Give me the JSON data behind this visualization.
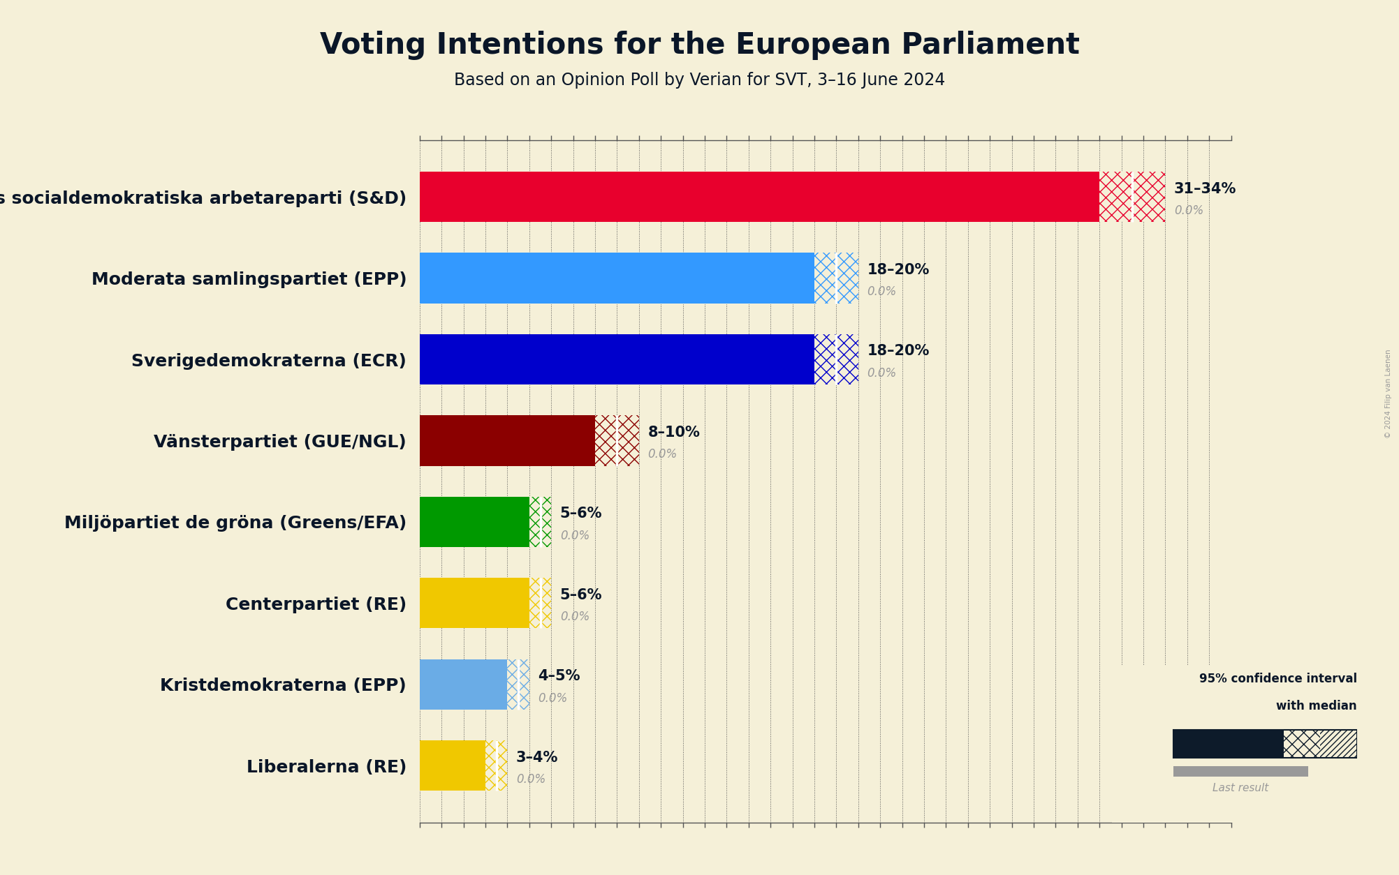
{
  "title": "Voting Intentions for the European Parliament",
  "subtitle": "Based on an Opinion Poll by Verian for SVT, 3–16 June 2024",
  "copyright": "© 2024 Filip van Laenen",
  "background_color": "#f5f0d8",
  "parties": [
    {
      "name": "Sveriges socialdemokratiska arbetareparti (S&D)",
      "low": 31,
      "high": 34,
      "median": 32.5,
      "last": 0.0,
      "color": "#e8002d",
      "label": "31–34%"
    },
    {
      "name": "Moderata samlingspartiet (EPP)",
      "low": 18,
      "high": 20,
      "median": 19,
      "last": 0.0,
      "color": "#3399ff",
      "label": "18–20%"
    },
    {
      "name": "Sverigedemokraterna (ECR)",
      "low": 18,
      "high": 20,
      "median": 19,
      "last": 0.0,
      "color": "#0000cc",
      "label": "18–20%"
    },
    {
      "name": "Vänsterpartiet (GUE/NGL)",
      "low": 8,
      "high": 10,
      "median": 9,
      "last": 0.0,
      "color": "#8b0000",
      "label": "8–10%"
    },
    {
      "name": "Miljöpartiet de gröna (Greens/EFA)",
      "low": 5,
      "high": 6,
      "median": 5.5,
      "last": 0.0,
      "color": "#009900",
      "label": "5–6%"
    },
    {
      "name": "Centerpartiet (RE)",
      "low": 5,
      "high": 6,
      "median": 5.5,
      "last": 0.0,
      "color": "#f0c800",
      "label": "5–6%"
    },
    {
      "name": "Kristdemokraterna (EPP)",
      "low": 4,
      "high": 5,
      "median": 4.5,
      "last": 0.0,
      "color": "#6aace6",
      "label": "4–5%"
    },
    {
      "name": "Liberalerna (RE)",
      "low": 3,
      "high": 4,
      "median": 3.5,
      "last": 0.0,
      "color": "#f0c800",
      "label": "3–4%"
    }
  ],
  "xlim": [
    0,
    37
  ],
  "tick_interval": 1,
  "title_fontsize": 30,
  "subtitle_fontsize": 17,
  "bar_label_fontsize": 15,
  "party_label_fontsize": 18,
  "bar_height": 0.62,
  "text_color": "#0a1628",
  "grid_color": "#555555",
  "legend_dark_color": "#0d1b2a"
}
